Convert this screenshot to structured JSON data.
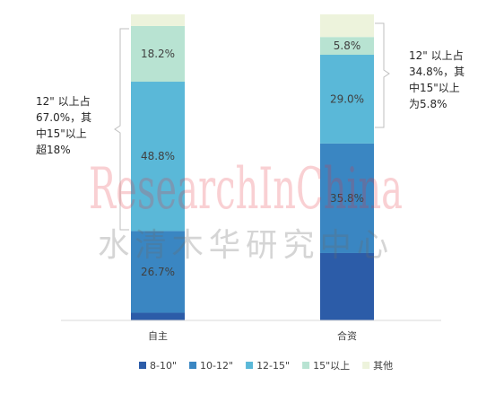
{
  "chart_data": {
    "type": "bar",
    "stacked": true,
    "categories": [
      "自主",
      "合资"
    ],
    "series": [
      {
        "name": "8-10\"",
        "color": "#2c5ca8",
        "values": [
          2.5,
          22.0
        ]
      },
      {
        "name": "10-12\"",
        "color": "#3a86c2",
        "values": [
          26.7,
          35.8
        ]
      },
      {
        "name": "12-15\"",
        "color": "#5ab8d8",
        "values": [
          48.8,
          29.0
        ]
      },
      {
        "name": "15\"以上",
        "color": "#b8e3d2",
        "values": [
          18.2,
          5.8
        ]
      },
      {
        "name": "其他",
        "color": "#edf3dc",
        "values": [
          3.8,
          7.4
        ]
      }
    ],
    "data_labels": [
      [
        "",
        "26.7%",
        "48.8%",
        "18.2%",
        ""
      ],
      [
        "",
        "35.8%",
        "29.0%",
        "5.8%",
        ""
      ]
    ],
    "ylim": [
      0,
      100
    ],
    "legend_position": "bottom",
    "grid": false
  },
  "annotations": {
    "left": [
      "12\" 以上占",
      "67.0%，其",
      "中15\"以上",
      "超18%"
    ],
    "right": [
      "12\" 以上占",
      "34.8%，其",
      "中15\"以上",
      "为5.8%"
    ]
  },
  "watermark": {
    "latin": "ResearchInChina",
    "cjk": "水清木华研究中心"
  }
}
